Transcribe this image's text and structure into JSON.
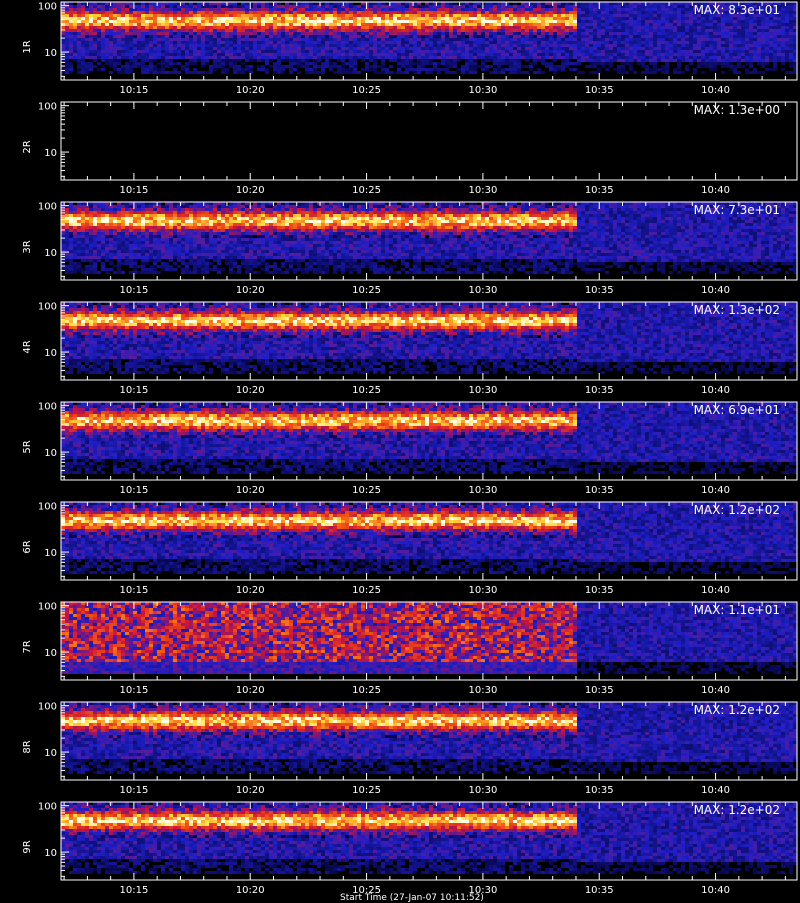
{
  "chart_data": [
    {
      "type": "heatmap",
      "channel": "1R",
      "max_label": "MAX: 8.3e+01",
      "x_ticks": [
        "10:15",
        "10:20",
        "10:25",
        "10:30",
        "10:35",
        "10:40"
      ],
      "y_ticks": [
        "100",
        "10"
      ],
      "y_scale": "log",
      "bright_band_end": "10:34",
      "max_value": 83
    },
    {
      "type": "heatmap",
      "channel": "2R",
      "max_label": "MAX: 1.3e+00",
      "x_ticks": [
        "10:15",
        "10:20",
        "10:25",
        "10:30",
        "10:35",
        "10:40"
      ],
      "y_ticks": [
        "100",
        "10"
      ],
      "y_scale": "log",
      "bright_band_end": null,
      "max_value": 1.3
    },
    {
      "type": "heatmap",
      "channel": "3R",
      "max_label": "MAX: 7.3e+01",
      "x_ticks": [
        "10:15",
        "10:20",
        "10:25",
        "10:30",
        "10:35",
        "10:40"
      ],
      "y_ticks": [
        "100",
        "10"
      ],
      "y_scale": "log",
      "bright_band_end": "10:34",
      "max_value": 73
    },
    {
      "type": "heatmap",
      "channel": "4R",
      "max_label": "MAX: 1.3e+02",
      "x_ticks": [
        "10:15",
        "10:20",
        "10:25",
        "10:30",
        "10:35",
        "10:40"
      ],
      "y_ticks": [
        "100",
        "10"
      ],
      "y_scale": "log",
      "bright_band_end": "10:34",
      "max_value": 130
    },
    {
      "type": "heatmap",
      "channel": "5R",
      "max_label": "MAX: 6.9e+01",
      "x_ticks": [
        "10:15",
        "10:20",
        "10:25",
        "10:30",
        "10:35",
        "10:40"
      ],
      "y_ticks": [
        "100",
        "10"
      ],
      "y_scale": "log",
      "bright_band_end": "10:34",
      "max_value": 69
    },
    {
      "type": "heatmap",
      "channel": "6R",
      "max_label": "MAX: 1.2e+02",
      "x_ticks": [
        "10:15",
        "10:20",
        "10:25",
        "10:30",
        "10:35",
        "10:40"
      ],
      "y_ticks": [
        "100",
        "10"
      ],
      "y_scale": "log",
      "bright_band_end": "10:34",
      "max_value": 120
    },
    {
      "type": "heatmap",
      "channel": "7R",
      "max_label": "MAX: 1.1e+01",
      "x_ticks": [
        "10:15",
        "10:20",
        "10:25",
        "10:30",
        "10:35",
        "10:40"
      ],
      "y_ticks": [
        "100",
        "10"
      ],
      "y_scale": "log",
      "bright_band_end": "10:34",
      "max_value": 11
    },
    {
      "type": "heatmap",
      "channel": "8R",
      "max_label": "MAX: 1.2e+02",
      "x_ticks": [
        "10:15",
        "10:20",
        "10:25",
        "10:30",
        "10:35",
        "10:40"
      ],
      "y_ticks": [
        "100",
        "10"
      ],
      "y_scale": "log",
      "bright_band_end": "10:34",
      "max_value": 120
    },
    {
      "type": "heatmap",
      "channel": "9R",
      "max_label": "MAX: 1.2e+02",
      "x_ticks": [
        "10:15",
        "10:20",
        "10:25",
        "10:30",
        "10:35",
        "10:40"
      ],
      "y_ticks": [
        "100",
        "10"
      ],
      "y_scale": "log",
      "bright_band_end": "10:34",
      "max_value": 120
    }
  ],
  "colors": {
    "background": "#000000",
    "axis": "#ffffff",
    "low": "#1010c0",
    "mid": "#d02020",
    "high": "#ffff40"
  },
  "caption": "Start Time (27-Jan-07 10:11:52)"
}
